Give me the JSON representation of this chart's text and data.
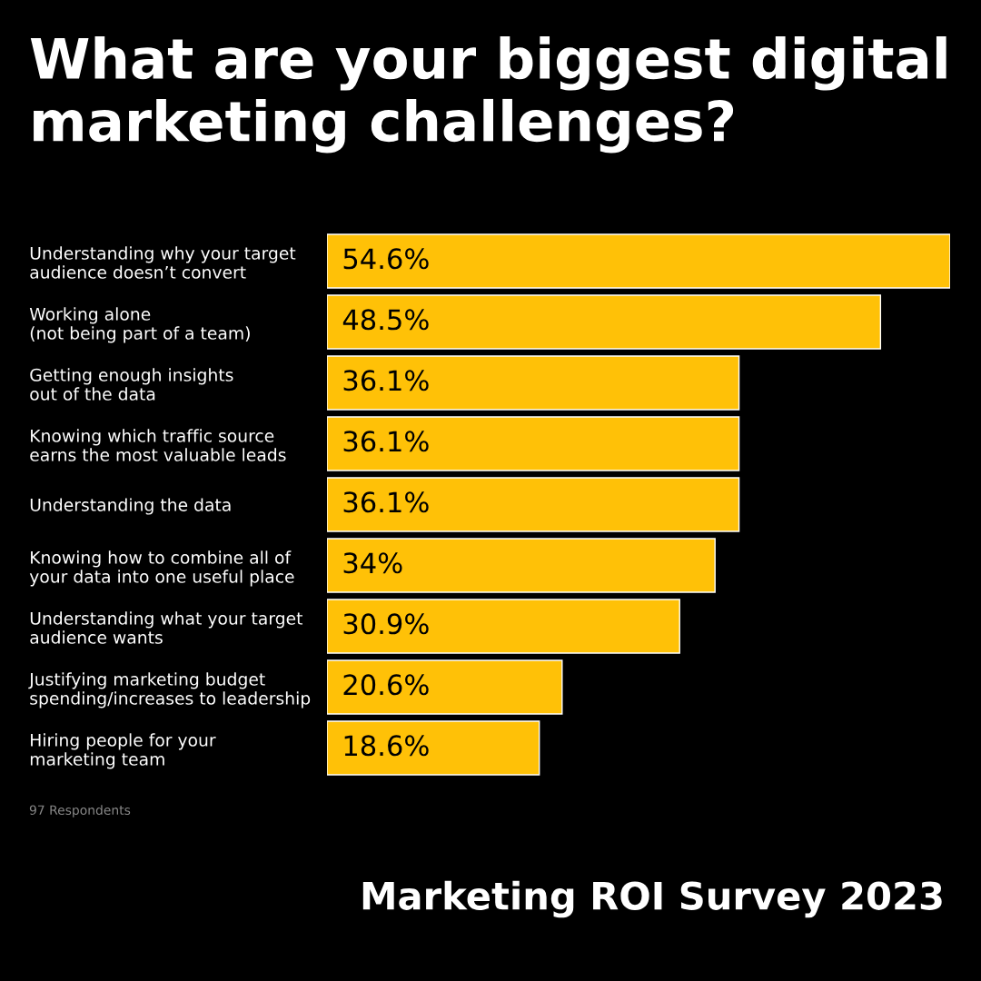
{
  "chart_data": {
    "type": "bar",
    "orientation": "horizontal",
    "title": "What are your biggest digital marketing challenges?",
    "categories": [
      "Understanding why your target\naudience doesn’t convert",
      "Working alone\n(not being part of a team)",
      "Getting enough insights\nout of the data",
      "Knowing which traffic source\nearns the most valuable leads",
      "Understanding the data",
      "Knowing how to combine all of\nyour data into one useful place",
      "Understanding what your target\naudience wants",
      "Justifying marketing budget\nspending/increases to leadership",
      "Hiring people for your\nmarketing team"
    ],
    "values": [
      54.6,
      48.5,
      36.1,
      36.1,
      36.1,
      34,
      30.9,
      20.6,
      18.6
    ],
    "value_labels": [
      "54.6%",
      "48.5%",
      "36.1%",
      "36.1%",
      "36.1%",
      "34%",
      "30.9%",
      "20.6%",
      "18.6%"
    ],
    "color": "#ffc107",
    "annotations": [
      "97 Respondents",
      "Marketing ROI Survey 2023"
    ]
  }
}
